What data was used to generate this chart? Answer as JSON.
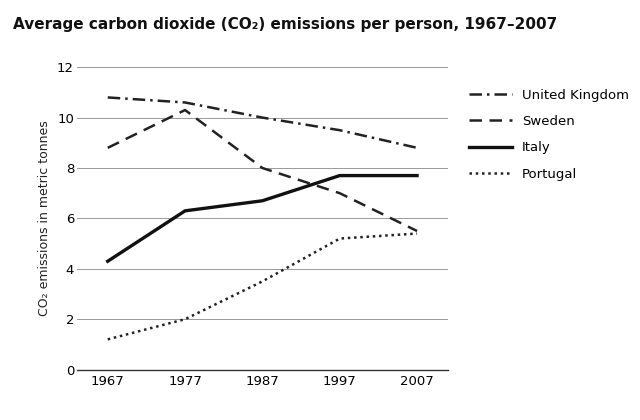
{
  "title": "Average carbon dioxide (CO₂) emissions per person, 1967–2007",
  "ylabel": "CO₂ emissions in metric tonnes",
  "years": [
    1967,
    1977,
    1987,
    1997,
    2007
  ],
  "series": {
    "United Kingdom": {
      "values": [
        10.8,
        10.6,
        10.0,
        9.5,
        8.8
      ],
      "linestyle": "dashdot",
      "color": "#222222",
      "linewidth": 1.8
    },
    "Sweden": {
      "values": [
        8.8,
        10.3,
        8.0,
        7.0,
        5.5
      ],
      "linestyle": "dashed",
      "color": "#222222",
      "linewidth": 1.8
    },
    "Italy": {
      "values": [
        4.3,
        6.3,
        6.7,
        7.7,
        7.7
      ],
      "linestyle": "solid",
      "color": "#111111",
      "linewidth": 2.4
    },
    "Portugal": {
      "values": [
        1.2,
        2.0,
        3.5,
        5.2,
        5.4
      ],
      "linestyle": "dotted",
      "color": "#222222",
      "linewidth": 1.8
    }
  },
  "xlim": [
    1963,
    2011
  ],
  "ylim": [
    0,
    12
  ],
  "yticks": [
    0,
    2,
    4,
    6,
    8,
    10,
    12
  ],
  "xticks": [
    1967,
    1977,
    1987,
    1997,
    2007
  ],
  "background_color": "#ffffff",
  "grid_color": "#999999",
  "title_fontsize": 11,
  "label_fontsize": 9,
  "tick_fontsize": 9.5,
  "legend_fontsize": 9.5
}
